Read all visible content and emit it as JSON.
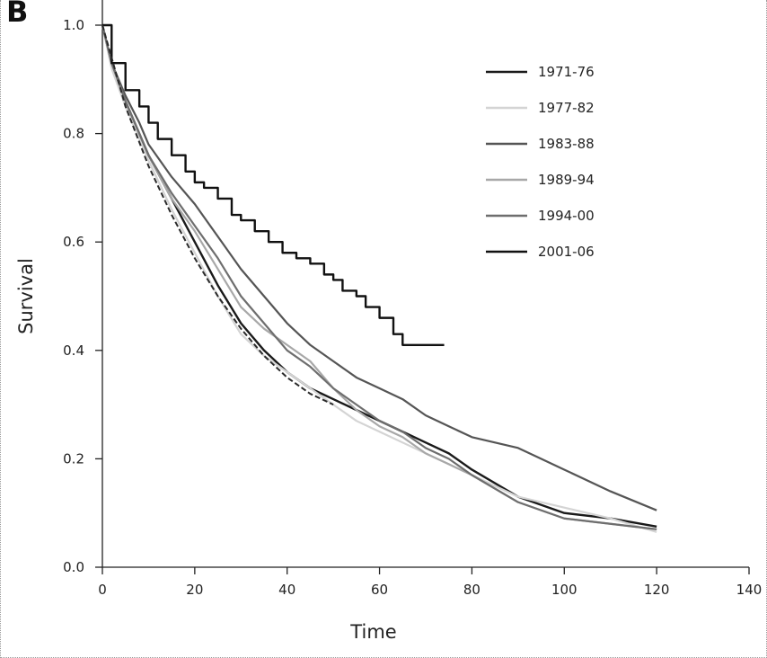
{
  "panel_label": "B",
  "chart_data": {
    "type": "line",
    "xlabel": "Time",
    "ylabel": "Survival",
    "xlim": [
      0,
      140
    ],
    "ylim": [
      0,
      1.0
    ],
    "x_ticks": [
      0,
      20,
      40,
      60,
      80,
      100,
      120,
      140
    ],
    "y_ticks": [
      0.0,
      0.2,
      0.4,
      0.6,
      0.8,
      1.0
    ],
    "x_tick_labels": [
      "0",
      "20",
      "40",
      "60",
      "80",
      "100",
      "120",
      "140"
    ],
    "y_tick_labels": [
      "0.0",
      "0.2",
      "0.4",
      "0.6",
      "0.8",
      "1.0"
    ],
    "grid": false,
    "legend_position": "top-right",
    "series": [
      {
        "name": "1971-76",
        "color": "#1a1a1a",
        "dash": "",
        "width": 2.4,
        "x": [
          0,
          2,
          5,
          8,
          10,
          15,
          20,
          25,
          30,
          35,
          40,
          45,
          50,
          55,
          60,
          65,
          70,
          75,
          80,
          90,
          100,
          110,
          120
        ],
        "y": [
          1.0,
          0.93,
          0.86,
          0.8,
          0.76,
          0.68,
          0.6,
          0.52,
          0.45,
          0.4,
          0.36,
          0.33,
          0.31,
          0.29,
          0.27,
          0.25,
          0.23,
          0.21,
          0.18,
          0.13,
          0.1,
          0.09,
          0.075
        ]
      },
      {
        "name": "1977-82",
        "color": "#d4d4d4",
        "dash": "",
        "width": 2.2,
        "x": [
          0,
          2,
          5,
          8,
          10,
          15,
          20,
          25,
          30,
          35,
          40,
          45,
          50,
          55,
          60,
          65,
          70,
          75,
          80,
          90,
          100,
          110,
          120
        ],
        "y": [
          1.0,
          0.92,
          0.85,
          0.79,
          0.75,
          0.66,
          0.58,
          0.5,
          0.43,
          0.39,
          0.36,
          0.33,
          0.3,
          0.27,
          0.25,
          0.23,
          0.21,
          0.19,
          0.17,
          0.13,
          0.11,
          0.09,
          0.065
        ]
      },
      {
        "name": "1983-88",
        "color": "#555555",
        "dash": "",
        "width": 2.2,
        "x": [
          0,
          2,
          5,
          8,
          10,
          15,
          20,
          25,
          30,
          35,
          40,
          45,
          50,
          55,
          60,
          65,
          70,
          75,
          80,
          90,
          100,
          110,
          120
        ],
        "y": [
          1.0,
          0.93,
          0.87,
          0.82,
          0.78,
          0.72,
          0.67,
          0.61,
          0.55,
          0.5,
          0.45,
          0.41,
          0.38,
          0.35,
          0.33,
          0.31,
          0.28,
          0.26,
          0.24,
          0.22,
          0.18,
          0.14,
          0.105
        ]
      },
      {
        "name": "1989-94",
        "color": "#a8a8a8",
        "dash": "",
        "width": 2.2,
        "x": [
          0,
          2,
          5,
          8,
          10,
          15,
          20,
          25,
          30,
          35,
          40,
          45,
          50,
          55,
          60,
          65,
          70,
          75,
          80,
          90,
          100,
          110,
          120
        ],
        "y": [
          1.0,
          0.93,
          0.86,
          0.8,
          0.76,
          0.68,
          0.62,
          0.55,
          0.48,
          0.44,
          0.41,
          0.38,
          0.33,
          0.29,
          0.26,
          0.24,
          0.21,
          0.19,
          0.17,
          0.12,
          0.09,
          0.08,
          0.07
        ]
      },
      {
        "name": "1994-00",
        "color": "#6e6e6e",
        "dash": "",
        "width": 2.2,
        "x": [
          0,
          2,
          5,
          8,
          10,
          15,
          20,
          25,
          30,
          35,
          40,
          45,
          50,
          55,
          60,
          65,
          70,
          75,
          80,
          90,
          100,
          110,
          120
        ],
        "y": [
          1.0,
          0.93,
          0.86,
          0.8,
          0.76,
          0.69,
          0.63,
          0.57,
          0.5,
          0.45,
          0.4,
          0.37,
          0.33,
          0.3,
          0.27,
          0.25,
          0.22,
          0.2,
          0.17,
          0.12,
          0.09,
          0.08,
          0.07
        ]
      },
      {
        "name": "2001-06",
        "color": "#111111",
        "dash": "",
        "width": 2.4,
        "step": true,
        "x": [
          0,
          2,
          5,
          8,
          10,
          12,
          15,
          18,
          20,
          22,
          25,
          28,
          30,
          33,
          36,
          39,
          42,
          45,
          48,
          50,
          52,
          55,
          57,
          60,
          63,
          65,
          74
        ],
        "y": [
          1.0,
          0.93,
          0.88,
          0.85,
          0.82,
          0.79,
          0.76,
          0.73,
          0.71,
          0.7,
          0.68,
          0.65,
          0.64,
          0.62,
          0.6,
          0.58,
          0.57,
          0.56,
          0.54,
          0.53,
          0.51,
          0.5,
          0.48,
          0.46,
          0.43,
          0.41,
          0.41
        ]
      },
      {
        "name": "",
        "color": "#2a2a2a",
        "dash": "6,3",
        "width": 2.0,
        "x": [
          0,
          5,
          10,
          15,
          20,
          25,
          30,
          35,
          40,
          45,
          50
        ],
        "y": [
          1.0,
          0.85,
          0.74,
          0.65,
          0.57,
          0.5,
          0.44,
          0.39,
          0.35,
          0.32,
          0.3
        ]
      }
    ]
  }
}
